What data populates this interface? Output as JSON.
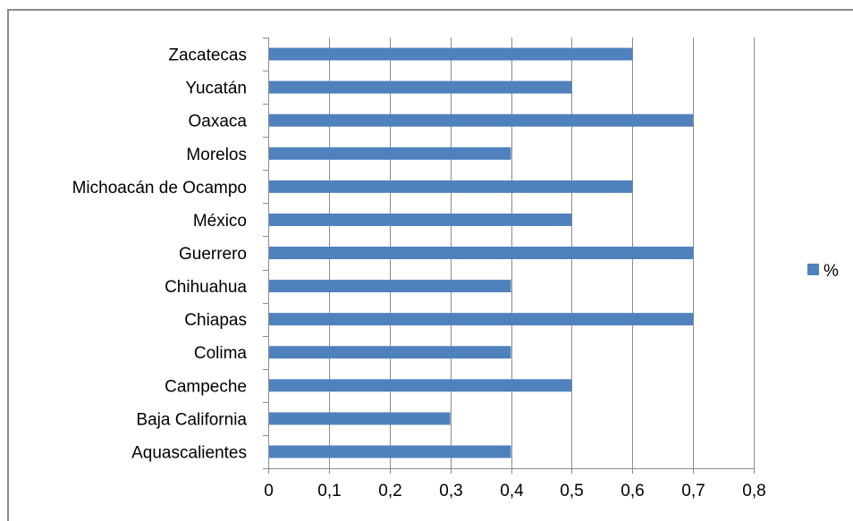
{
  "chart_data": {
    "type": "bar",
    "orientation": "horizontal",
    "categories": [
      "Aquascalientes",
      "Baja California",
      "Campeche",
      "Colima",
      "Chiapas",
      "Chihuahua",
      "Guerrero",
      "México",
      "Michoacán de Ocampo",
      "Morelos",
      "Oaxaca",
      "Yucatán",
      "Zacatecas"
    ],
    "series": [
      {
        "name": "%",
        "values": [
          0.4,
          0.3,
          0.5,
          0.4,
          0.7,
          0.4,
          0.7,
          0.5,
          0.6,
          0.4,
          0.7,
          0.5,
          0.6
        ]
      }
    ],
    "x_ticks": [
      "0",
      "0,1",
      "0,2",
      "0,3",
      "0,4",
      "0,5",
      "0,6",
      "0,7",
      "0,8"
    ],
    "xlim": [
      0,
      0.8
    ],
    "title": "",
    "xlabel": "",
    "ylabel": "",
    "grid": "vertical",
    "legend_position": "right",
    "colors": {
      "bar": "#4f81bd",
      "grid": "#8c8c8c",
      "axis": "#8c8c8c"
    }
  }
}
